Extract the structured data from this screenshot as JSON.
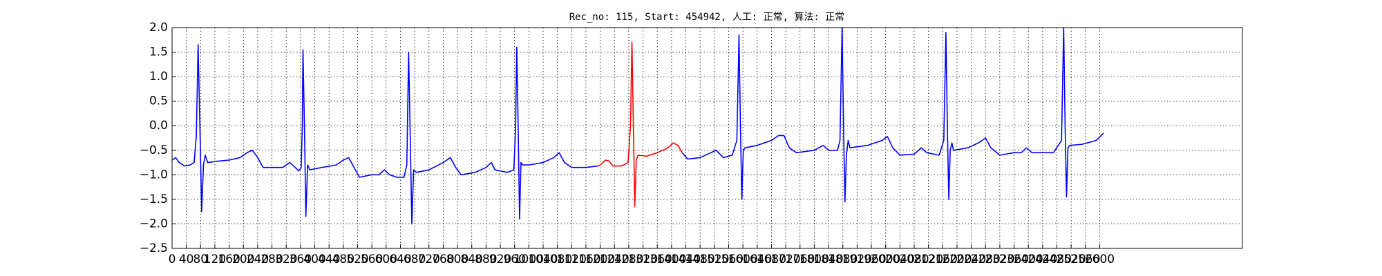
{
  "chart_data": {
    "type": "line",
    "title": "Rec_no: 115, Start: 454942, 人工: 正常, 算法: 正常",
    "grid": true,
    "xlim": [
      0,
      3000
    ],
    "ylim": [
      -2.5,
      2.0
    ],
    "xticks": [
      0,
      40,
      80,
      120,
      160,
      200,
      240,
      280,
      320,
      360,
      400,
      440,
      480,
      520,
      560,
      600,
      640,
      680,
      720,
      760,
      800,
      840,
      880,
      920,
      960,
      1000,
      1040,
      1080,
      1120,
      1160,
      1200,
      1240,
      1280,
      1320,
      1360,
      1400,
      1440,
      1480,
      1520,
      1560,
      1600,
      1640,
      1680,
      1720,
      1760,
      1800,
      1840,
      1880,
      1920,
      1960,
      2000,
      2040,
      2080,
      2120,
      2160,
      2200,
      2240,
      2280,
      2320,
      2360,
      2400,
      2440,
      2480,
      2520,
      2560,
      2600
    ],
    "yticks": [
      {
        "value": -2.5,
        "label": "−2.5"
      },
      {
        "value": -2.0,
        "label": "−2.0"
      },
      {
        "value": -1.5,
        "label": "−1.5"
      },
      {
        "value": -1.0,
        "label": "−1.0"
      },
      {
        "value": -0.5,
        "label": "−0.5"
      },
      {
        "value": 0,
        "label": "0.0"
      },
      {
        "value": 0.5,
        "label": "0.5"
      },
      {
        "value": 1.0,
        "label": "1.0"
      },
      {
        "value": 1.5,
        "label": "1.5"
      },
      {
        "value": 2.0,
        "label": "2.0"
      }
    ],
    "series": [
      {
        "color": "#0000ff",
        "x": [
          0,
          10,
          20,
          35,
          50,
          62,
          68,
          73,
          78,
          83,
          88,
          93,
          100,
          130,
          160,
          190,
          210,
          225,
          240,
          255,
          280,
          310,
          330,
          345,
          355,
          362,
          365,
          367,
          371,
          375,
          380,
          386,
          420,
          460,
          480,
          495,
          510,
          525,
          560,
          580,
          595,
          610,
          630,
          650,
          658,
          663,
          667,
          672,
          677,
          685,
          720,
          760,
          780,
          795,
          810,
          850,
          880,
          895,
          905,
          940,
          958,
          963,
          966,
          970,
          974,
          978,
          983,
          1000,
          1040,
          1070,
          1085,
          1100,
          1120,
          1160,
          1193
        ],
        "values": [
          -0.7,
          -0.65,
          -0.75,
          -0.82,
          -0.8,
          -0.75,
          -0.2,
          1.65,
          0.0,
          -1.75,
          -0.8,
          -0.6,
          -0.75,
          -0.72,
          -0.7,
          -0.65,
          -0.55,
          -0.5,
          -0.65,
          -0.85,
          -0.85,
          -0.85,
          -0.75,
          -0.85,
          -0.92,
          -0.85,
          0.0,
          1.55,
          0.0,
          -1.85,
          -0.8,
          -0.9,
          -0.85,
          -0.8,
          -0.7,
          -0.65,
          -0.85,
          -1.05,
          -1.0,
          -1.0,
          -0.9,
          -1.0,
          -1.05,
          -1.05,
          -0.8,
          1.5,
          0.0,
          -2.0,
          -0.9,
          -0.95,
          -0.9,
          -0.75,
          -0.65,
          -0.85,
          -1.0,
          -0.95,
          -0.85,
          -0.75,
          -0.9,
          -0.95,
          -0.9,
          0.0,
          1.6,
          0.0,
          -1.9,
          -0.75,
          -0.8,
          -0.8,
          -0.75,
          -0.65,
          -0.55,
          -0.75,
          -0.85,
          -0.85,
          -0.82
        ]
      },
      {
        "color": "#ff0000",
        "x": [
          1193,
          1200,
          1215,
          1225,
          1235,
          1260,
          1278,
          1285,
          1289,
          1293,
          1297,
          1301,
          1306,
          1330,
          1360,
          1390,
          1405,
          1418,
          1430
        ],
        "values": [
          -0.82,
          -0.8,
          -0.7,
          -0.72,
          -0.82,
          -0.82,
          -0.75,
          0.0,
          1.7,
          0.0,
          -1.65,
          -0.7,
          -0.6,
          -0.62,
          -0.55,
          -0.45,
          -0.35,
          -0.4,
          -0.55
        ]
      },
      {
        "color": "#0000ff",
        "x": [
          1430,
          1445,
          1480,
          1510,
          1525,
          1545,
          1570,
          1583,
          1589,
          1593,
          1597,
          1601,
          1606,
          1640,
          1680,
          1700,
          1715,
          1730,
          1750,
          1800,
          1825,
          1840,
          1865,
          1872,
          1878,
          1882,
          1886,
          1890,
          1895,
          1900,
          1950,
          1990,
          2005,
          2020,
          2040,
          2080,
          2100,
          2115,
          2150,
          2163,
          2169,
          2173,
          2177,
          2181,
          2186,
          2190,
          2230,
          2260,
          2280,
          2295,
          2320,
          2360,
          2380,
          2395,
          2410,
          2470,
          2493,
          2499,
          2503,
          2507,
          2511,
          2516,
          2550,
          2590,
          2611
        ],
        "values": [
          -0.55,
          -0.68,
          -0.65,
          -0.55,
          -0.5,
          -0.65,
          -0.6,
          -0.3,
          1.85,
          0.0,
          -1.5,
          -0.5,
          -0.45,
          -0.4,
          -0.3,
          -0.2,
          -0.2,
          -0.45,
          -0.55,
          -0.5,
          -0.4,
          -0.5,
          -0.5,
          -0.3,
          2.0,
          0.0,
          -1.55,
          -0.6,
          -0.3,
          -0.45,
          -0.4,
          -0.3,
          -0.22,
          -0.45,
          -0.6,
          -0.58,
          -0.45,
          -0.55,
          -0.6,
          -0.3,
          1.9,
          0.0,
          -1.5,
          -0.5,
          -0.35,
          -0.5,
          -0.45,
          -0.35,
          -0.25,
          -0.45,
          -0.6,
          -0.55,
          -0.55,
          -0.45,
          -0.55,
          -0.55,
          -0.3,
          2.0,
          0.0,
          -1.45,
          -0.45,
          -0.4,
          -0.38,
          -0.3,
          -0.15
        ]
      }
    ]
  }
}
